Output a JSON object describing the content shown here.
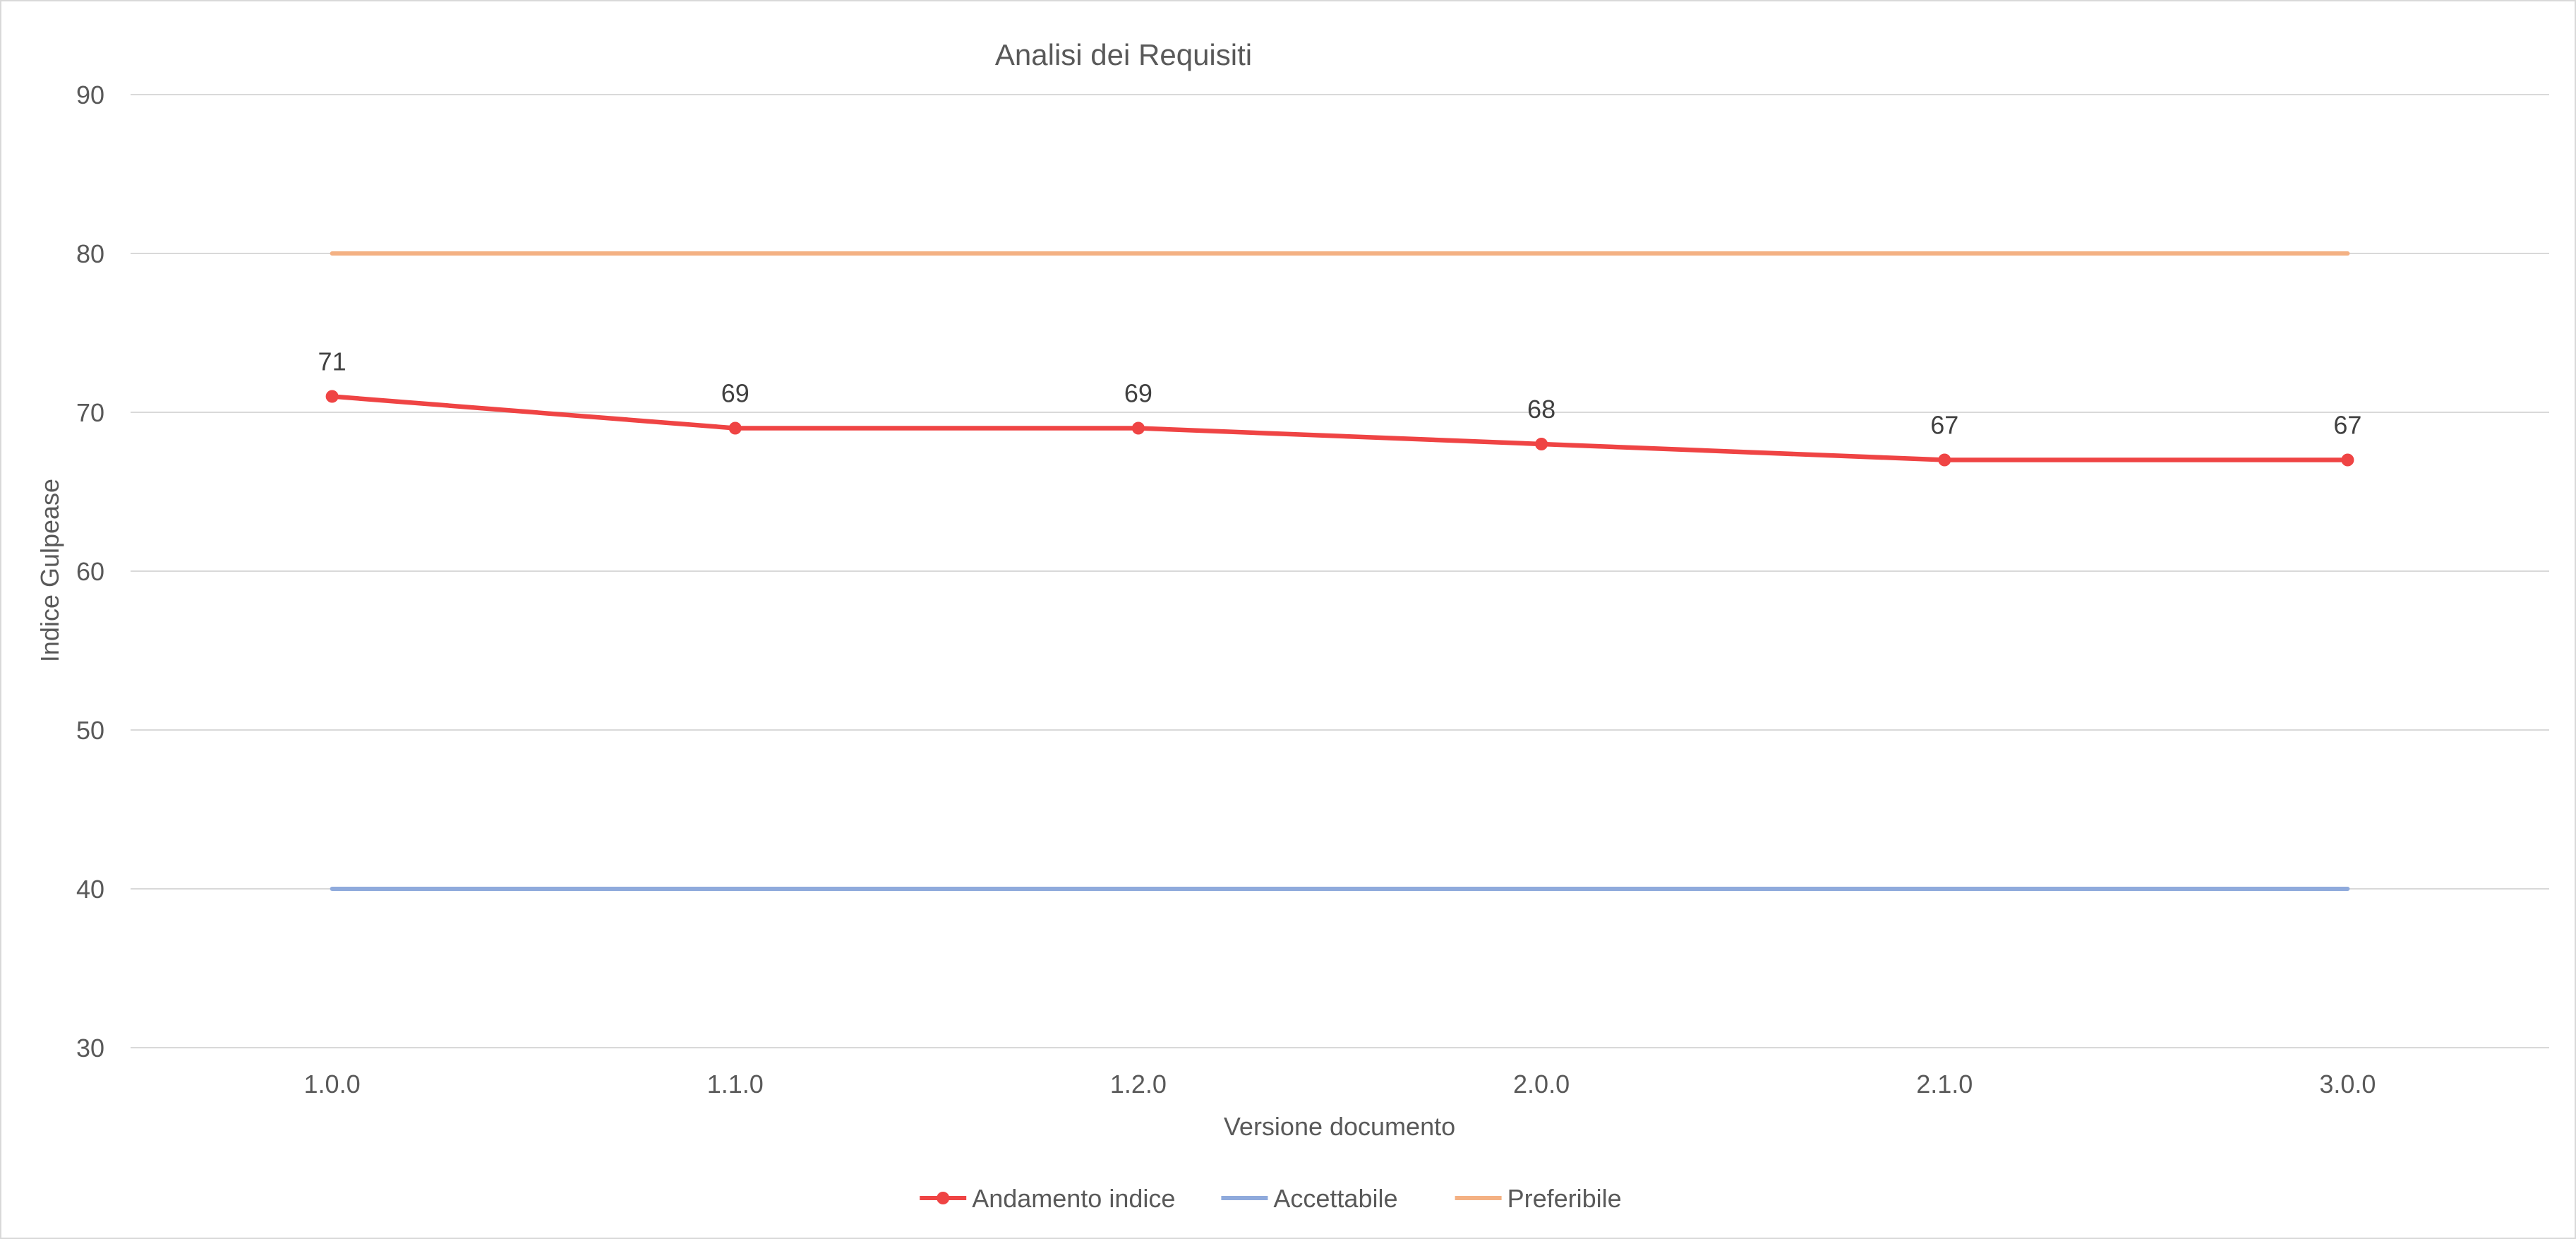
{
  "chart_data": {
    "type": "line",
    "title": "Analisi dei Requisiti",
    "xlabel": "Versione documento",
    "ylabel": "Indice Gulpease",
    "categories": [
      "1.0.0",
      "1.1.0",
      "1.2.0",
      "2.0.0",
      "2.1.0",
      "3.0.0"
    ],
    "ylim": [
      30,
      90
    ],
    "yticks": [
      30,
      40,
      50,
      60,
      70,
      80,
      90
    ],
    "grid": true,
    "legend_position": "bottom",
    "series": [
      {
        "name": "Andamento indice",
        "values": [
          71,
          69,
          69,
          68,
          67,
          67
        ],
        "color": "#ef4444",
        "markers": true,
        "data_labels": true
      },
      {
        "name": "Accettabile",
        "values": [
          40,
          40,
          40,
          40,
          40,
          40
        ],
        "color": "#8faadc",
        "markers": false,
        "data_labels": false
      },
      {
        "name": "Preferibile",
        "values": [
          80,
          80,
          80,
          80,
          80,
          80
        ],
        "color": "#f4b183",
        "markers": false,
        "data_labels": false
      }
    ]
  }
}
